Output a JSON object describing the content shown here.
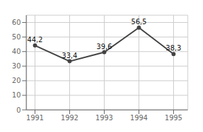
{
  "chart_data": {
    "type": "line",
    "x": [
      1991,
      1992,
      1993,
      1994,
      1995
    ],
    "values": [
      44.2,
      33.4,
      39.6,
      56.5,
      38.3
    ],
    "value_labels": [
      "44,2",
      "33,4",
      "39,6",
      "56,5",
      "38,3"
    ],
    "data_labels": true,
    "color": "#444444",
    "xlim": [
      1990.75,
      1995.41
    ],
    "xticks": [
      1991,
      1992,
      1993,
      1994,
      1995
    ],
    "ylim": [
      0,
      65
    ],
    "yticks": [
      0,
      10,
      20,
      30,
      40,
      50,
      60
    ],
    "grid": true
  }
}
